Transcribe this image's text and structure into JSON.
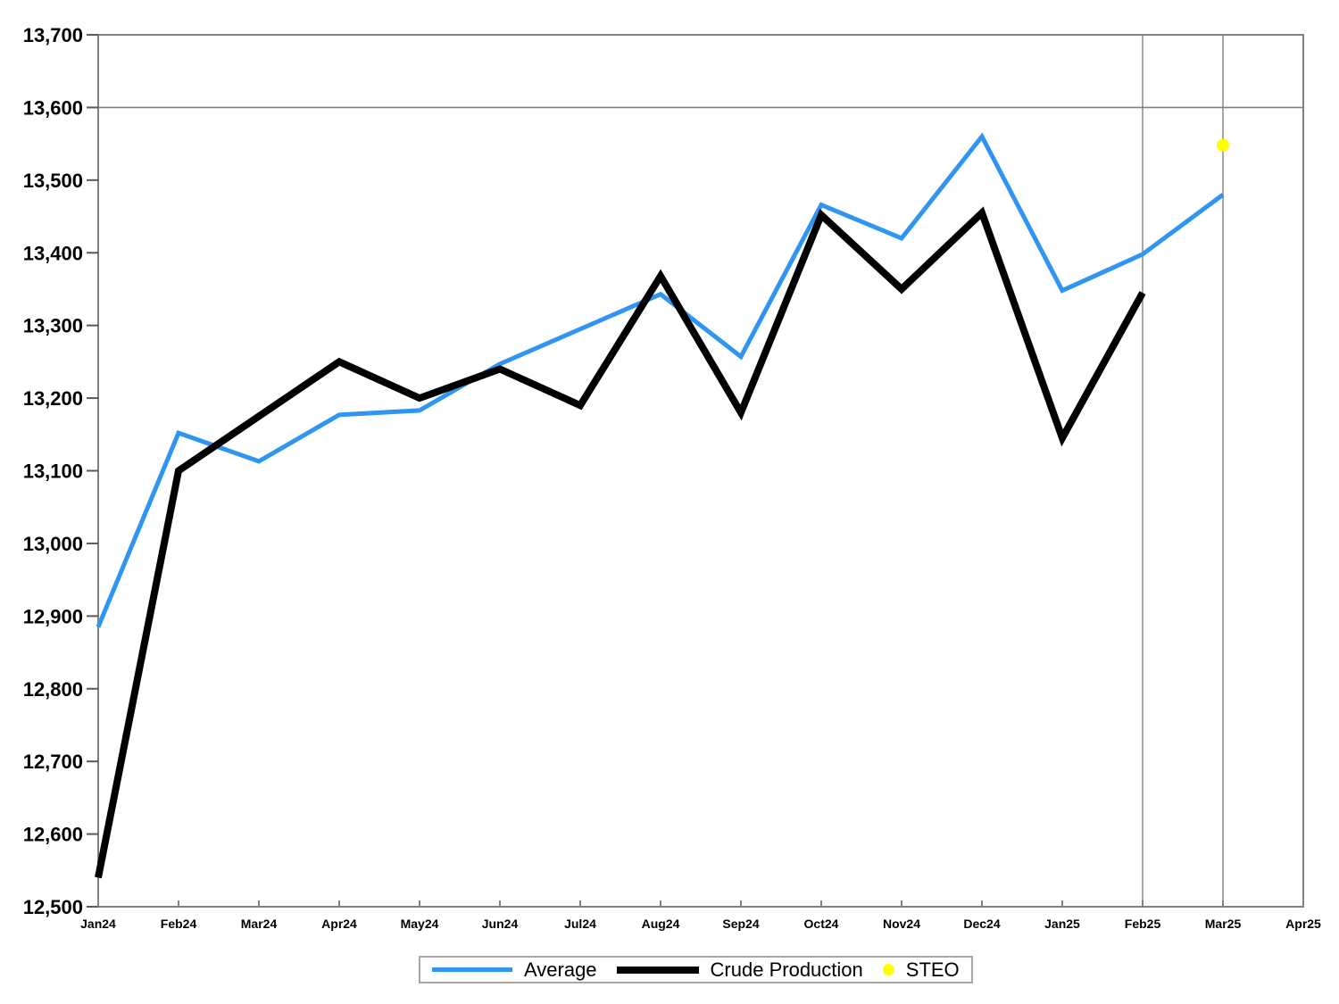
{
  "page": {
    "background": "#FFFFFF"
  },
  "colors": {
    "average": "#3095F0",
    "crude_production": "#000000",
    "steo": "#FFFF00",
    "axis": "#808080",
    "tick": "#595959",
    "legend_border": "#A6A6A6"
  },
  "legend": {
    "items": [
      {
        "label": "Average"
      },
      {
        "label": "Crude Production"
      },
      {
        "label": "STEO"
      }
    ]
  },
  "chart_data": {
    "type": "line",
    "title": "",
    "xlabel": "",
    "ylabel": "",
    "categories": [
      "Jan24",
      "Feb24",
      "Mar24",
      "Apr24",
      "May24",
      "Jun24",
      "Jul24",
      "Aug24",
      "Sep24",
      "Oct24",
      "Nov24",
      "Dec24",
      "Jan25",
      "Feb25",
      "Mar25",
      "Apr25"
    ],
    "series": [
      {
        "name": "Average",
        "color": "#3095F0",
        "stroke_width": 5,
        "values": [
          12885,
          13152,
          13113,
          13177,
          13183,
          13247,
          13295,
          13343,
          13257,
          13466,
          13420,
          13560,
          13348,
          13398,
          13480,
          null
        ]
      },
      {
        "name": "Crude Production",
        "color": "#000000",
        "stroke_width": 8,
        "values": [
          12540,
          13100,
          13175,
          13250,
          13200,
          13240,
          13190,
          13368,
          13180,
          13452,
          13350,
          13455,
          13145,
          13345,
          null,
          null
        ]
      }
    ],
    "point_series": [
      {
        "name": "STEO",
        "color": "#FFFF00",
        "category": "Mar25",
        "value": 13548,
        "radius": 7
      }
    ],
    "ylim": [
      12500,
      13700
    ],
    "ytick_step": 100,
    "grid": {
      "horizontal_at": [
        13600
      ],
      "vertical_at": [
        "Feb25",
        "Mar25"
      ]
    },
    "legend_position": "bottom"
  }
}
